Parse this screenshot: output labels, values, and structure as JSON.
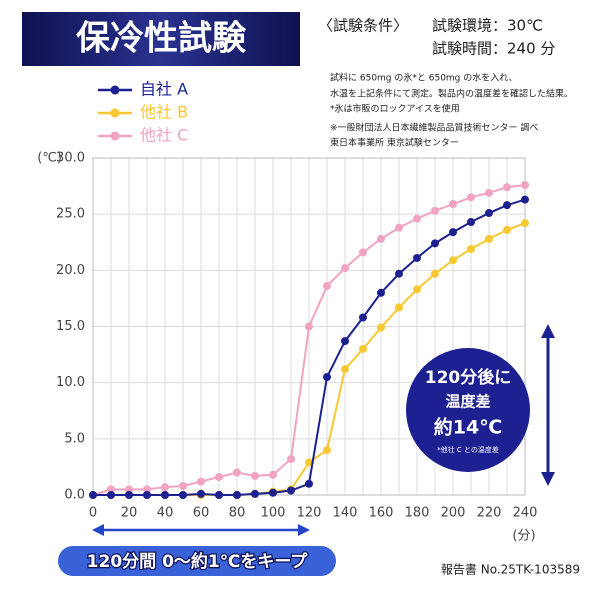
{
  "chart_data": {
    "type": "line",
    "title": "保冷性試験",
    "conditions": [
      "〈試験条件〉",
      "試験環境：30℃",
      "試験時間：240 分"
    ],
    "notes": [
      "試料に 650mg の氷*と 650mg の水を入れ、",
      "水温を上記条件にて測定。製品内の温度差を確認した結果。",
      "*氷は市販のロックアイスを使用",
      "※一般財団法人日本繊維製品品質技術センター 調べ",
      "東日本事業所 東京試験センター"
    ],
    "y_label": "(℃)",
    "x_label": "(分)",
    "x": [
      0,
      10,
      20,
      30,
      40,
      50,
      60,
      70,
      80,
      90,
      100,
      110,
      120,
      130,
      140,
      150,
      160,
      170,
      180,
      190,
      200,
      210,
      220,
      230,
      240
    ],
    "series": [
      {
        "name": "自社 A",
        "color": "#1c2090",
        "values": [
          0,
          0,
          0,
          0,
          0,
          0,
          0.1,
          0,
          0,
          0.1,
          0.2,
          0.4,
          1.0,
          10.5,
          13.7,
          15.8,
          18.0,
          19.7,
          21.1,
          22.4,
          23.4,
          24.3,
          25.1,
          25.8,
          26.3
        ]
      },
      {
        "name": "他社 B",
        "color": "#f8c832",
        "values": [
          0,
          0,
          0,
          0,
          0,
          0,
          0,
          0,
          0,
          0.1,
          0.3,
          0.5,
          2.9,
          4.0,
          11.2,
          13.0,
          14.9,
          16.7,
          18.3,
          19.7,
          20.9,
          21.9,
          22.8,
          23.6,
          24.2
        ]
      },
      {
        "name": "他社 C",
        "color": "#f2a3c4",
        "values": [
          0,
          0.5,
          0.5,
          0.5,
          0.7,
          0.8,
          1.2,
          1.6,
          2.0,
          1.7,
          1.8,
          3.2,
          15.0,
          18.6,
          20.2,
          21.6,
          22.8,
          23.8,
          24.6,
          25.3,
          25.9,
          26.5,
          26.9,
          27.4,
          27.6
        ]
      }
    ],
    "xlim": [
      0,
      240
    ],
    "xticks": [
      0,
      20,
      40,
      60,
      80,
      100,
      120,
      140,
      160,
      180,
      200,
      220,
      240
    ],
    "ylim": [
      0,
      30
    ],
    "yticks": [
      {
        "value": 0,
        "label": "0.0"
      },
      {
        "value": 5,
        "label": "5.0"
      },
      {
        "value": 10,
        "label": "10.0"
      },
      {
        "value": 15,
        "label": "15.0"
      },
      {
        "value": 20,
        "label": "20.0"
      },
      {
        "value": 25,
        "label": "25.0"
      },
      {
        "value": 30,
        "label": "30.0"
      }
    ],
    "grid": true,
    "callout": [
      "120分後に",
      "温度差",
      "約14℃",
      "*他社 C との温度差"
    ],
    "banner": "120分間 0～約1℃をキープ",
    "report": "報告書 No.25TK-103589"
  }
}
